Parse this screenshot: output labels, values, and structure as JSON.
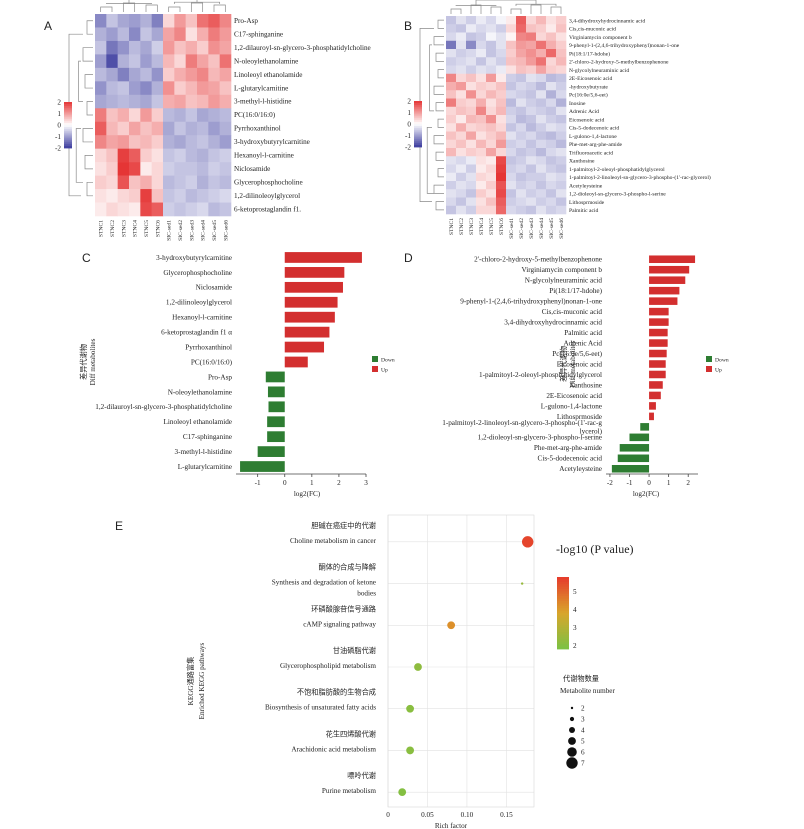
{
  "panels": {
    "a": "A",
    "b": "B",
    "c": "C",
    "d": "D",
    "e": "E"
  },
  "chart_data": [
    {
      "panel": "A",
      "type": "heatmap",
      "columns": [
        "STNC1",
        "STNC2",
        "STNC3",
        "STNC4",
        "STNC5",
        "STNC6",
        "SIC-sed1",
        "SIC-sed2",
        "SIC-sed3",
        "SIC-sed4",
        "SIC-sed5",
        "SIC-sed6"
      ],
      "rows": [
        "Pro-Asp",
        "C17-sphinganine",
        "1,2-dilauroyl-sn-glycero-3-phosphatidylcholine",
        "N-oleoylethanolamine",
        "Linoleoyl ethanolamide",
        "L-glutarylcarnitine",
        "3-methyl-l-histidine",
        "PC(16:0/16:0)",
        "Pyrrhoxanthinol",
        "3-hydroxybutyrylcarnitine",
        "Hexanoyl-l-carnitine",
        "Niclosamide",
        "Glycerophosphocholine",
        "1,2-dilinoleoylglycerol",
        "6-ketoprostaglandin f1."
      ],
      "values": [
        [
          -1.2,
          -0.6,
          -0.9,
          -1.0,
          -0.8,
          -1.3,
          0.4,
          1.0,
          0.6,
          1.4,
          1.6,
          1.2
        ],
        [
          -0.8,
          -1.0,
          -0.7,
          -1.2,
          -0.6,
          -0.9,
          0.9,
          1.2,
          0.3,
          0.8,
          1.3,
          1.0
        ],
        [
          -0.6,
          -1.4,
          -1.1,
          -0.7,
          -0.9,
          -0.5,
          1.0,
          0.6,
          0.8,
          0.5,
          1.1,
          0.9
        ],
        [
          -1.0,
          -1.8,
          -0.8,
          -0.6,
          -1.0,
          -0.7,
          0.7,
          0.4,
          1.3,
          0.9,
          0.6,
          1.4
        ],
        [
          -0.7,
          -0.9,
          -1.3,
          -0.9,
          -0.7,
          -1.1,
          0.5,
          0.8,
          1.0,
          1.2,
          0.7,
          0.9
        ],
        [
          -1.1,
          -0.7,
          -0.6,
          -1.0,
          -1.2,
          -0.8,
          1.1,
          0.5,
          0.7,
          1.0,
          0.9,
          0.6
        ],
        [
          -0.9,
          -0.8,
          -0.7,
          -0.8,
          -0.9,
          -0.6,
          0.8,
          0.9,
          0.6,
          0.7,
          1.0,
          0.8
        ],
        [
          1.3,
          0.6,
          0.8,
          0.4,
          1.0,
          0.5,
          -0.7,
          -0.8,
          -0.6,
          -0.9,
          -0.8,
          -0.7
        ],
        [
          1.6,
          0.7,
          0.5,
          0.9,
          0.6,
          0.8,
          -0.9,
          -0.6,
          -0.8,
          -0.7,
          -1.0,
          -0.8
        ],
        [
          1.2,
          0.9,
          1.0,
          0.6,
          0.7,
          0.5,
          -0.8,
          -0.9,
          -0.7,
          -0.6,
          -0.8,
          -1.0
        ],
        [
          0.4,
          0.6,
          1.9,
          1.6,
          0.5,
          0.3,
          -0.6,
          -0.5,
          -0.7,
          -0.8,
          -0.6,
          -0.5
        ],
        [
          0.3,
          0.5,
          2.0,
          1.8,
          0.2,
          0.4,
          -0.5,
          -0.6,
          -0.6,
          -0.7,
          -0.5,
          -0.6
        ],
        [
          0.5,
          0.4,
          1.7,
          0.6,
          0.8,
          0.4,
          -0.7,
          -0.6,
          -0.5,
          -0.8,
          -0.6,
          -0.7
        ],
        [
          0.3,
          0.2,
          0.4,
          0.5,
          1.9,
          0.6,
          -0.6,
          -0.5,
          -0.7,
          -0.6,
          -0.5,
          -0.4
        ],
        [
          0.2,
          0.4,
          0.3,
          0.2,
          1.8,
          1.6,
          -0.5,
          -0.6,
          -0.5,
          -0.4,
          -0.7,
          -0.6
        ]
      ],
      "scale": {
        "min": -2,
        "max": 2,
        "ticks": [
          "2",
          "1",
          "0",
          "-1",
          "-2"
        ],
        "colors": [
          "#3b3b9e",
          "#ffffff",
          "#e53535"
        ]
      }
    },
    {
      "panel": "B",
      "type": "heatmap",
      "columns": [
        "STNC1",
        "STNC2",
        "STNC3",
        "STNC4",
        "STNC5",
        "STNC6",
        "SIC-sed1",
        "SIC-sed2",
        "SIC-sed3",
        "SIC-sed4",
        "SIC-sed5",
        "SIC-sed6"
      ],
      "rows": [
        "3,4-dihydroxyhydrocinnamic acid",
        "Cis,cis-muconic acid",
        "Virginiamycin component b",
        "9-phenyl-1-(2,4,6-trihydroxyphenyl)nonan-1-one",
        "Pi(18:1/17-hdohe)",
        "2'-chloro-2-hydroxy-5-methylbenzophenone",
        "N-glycolylneuraminic acid",
        "2E-Eicosenoic acid",
        "-hydroxybutyrate",
        "Pc(16:0e/5,6-eet)",
        "Inosine",
        "Adrenic Acid",
        "Eicosenoic acid",
        "Cis-5-dodecenoic acid",
        "L-gulono-1,4-lactone",
        "Phe-met-arg-phe-amide",
        "Trifluoroacetic acid",
        "Xanthosine",
        "1-palmitoyl-2-oleoyl-phosphatidylglycerol",
        "1-palmitoyl-2-linoleoyl-sn-glycero-3-phospho-(1'-rac-glycerol)",
        "Acetyleysteine",
        "1,2-dioleoyl-sn-glycero-3-phospho-l-serine",
        "Lithosprmoside",
        "Palmitic acid"
      ],
      "values": [
        [
          -0.6,
          -0.3,
          -0.5,
          -0.2,
          -0.4,
          -0.1,
          0.2,
          1.6,
          0.4,
          0.7,
          0.3,
          0.5
        ],
        [
          -0.5,
          -0.6,
          -0.2,
          -0.4,
          -0.3,
          -0.5,
          0.4,
          1.5,
          0.6,
          0.5,
          0.2,
          0.6
        ],
        [
          -0.4,
          -0.2,
          -0.6,
          -0.5,
          -0.1,
          -0.3,
          0.1,
          1.2,
          1.3,
          0.4,
          0.6,
          0.3
        ],
        [
          -1.4,
          -0.3,
          -1.2,
          -0.4,
          -0.6,
          -0.3,
          0.6,
          1.0,
          0.9,
          1.4,
          0.8,
          0.5
        ],
        [
          -0.3,
          -0.5,
          -0.4,
          -0.2,
          -0.6,
          -0.4,
          0.5,
          0.9,
          1.1,
          0.8,
          1.5,
          0.6
        ],
        [
          -0.5,
          -0.4,
          -0.3,
          -0.6,
          -0.3,
          -0.5,
          0.6,
          0.7,
          1.0,
          1.4,
          0.4,
          0.7
        ],
        [
          -0.4,
          -0.3,
          -0.5,
          -0.3,
          -0.4,
          -0.2,
          0.3,
          0.6,
          0.5,
          0.9,
          0.5,
          0.4
        ],
        [
          1.2,
          0.4,
          0.6,
          0.3,
          1.0,
          0.2,
          -0.5,
          -0.6,
          -0.3,
          -0.4,
          -0.7,
          -0.6
        ],
        [
          0.8,
          1.0,
          0.3,
          0.5,
          0.4,
          0.6,
          -0.6,
          -0.4,
          -0.5,
          -0.7,
          -0.3,
          -0.5
        ],
        [
          0.6,
          0.3,
          1.1,
          0.4,
          0.7,
          0.5,
          -0.4,
          -0.5,
          -0.6,
          -0.3,
          -0.8,
          -0.4
        ],
        [
          1.3,
          0.5,
          0.4,
          0.8,
          0.3,
          0.6,
          -0.7,
          -0.3,
          -0.5,
          -0.6,
          -0.4,
          -0.8
        ],
        [
          0.4,
          0.6,
          0.5,
          1.2,
          0.4,
          0.7,
          -0.5,
          -0.6,
          -0.4,
          -0.5,
          -0.6,
          -0.3
        ],
        [
          0.5,
          0.2,
          0.7,
          0.6,
          1.1,
          0.3,
          -0.4,
          -0.7,
          -0.6,
          -0.3,
          -0.5,
          -0.6
        ],
        [
          0.3,
          0.8,
          0.4,
          0.5,
          0.6,
          0.4,
          -0.6,
          -0.4,
          -0.7,
          -0.5,
          -0.3,
          -0.4
        ],
        [
          0.6,
          0.4,
          0.9,
          0.3,
          0.5,
          0.7,
          -0.3,
          -0.5,
          -0.4,
          -0.6,
          -0.7,
          -0.5
        ],
        [
          0.4,
          0.6,
          0.3,
          0.7,
          0.4,
          1.0,
          -0.5,
          -0.4,
          -0.6,
          -0.4,
          -0.5,
          -0.7
        ],
        [
          0.7,
          0.3,
          0.5,
          0.4,
          0.9,
          0.4,
          -0.4,
          -0.6,
          -0.5,
          -0.7,
          -0.4,
          -0.3
        ],
        [
          -0.3,
          -0.4,
          -0.2,
          0.3,
          0.2,
          1.8,
          -0.6,
          -0.5,
          -0.3,
          -0.4,
          -0.6,
          -0.5
        ],
        [
          -0.4,
          -0.2,
          -0.5,
          0.2,
          0.4,
          1.9,
          -0.5,
          -0.4,
          -0.6,
          -0.3,
          -0.5,
          -0.6
        ],
        [
          -0.2,
          -0.5,
          -0.3,
          0.4,
          0.3,
          2.0,
          -0.4,
          -0.6,
          -0.5,
          -0.5,
          -0.3,
          -0.4
        ],
        [
          -0.5,
          -0.3,
          -0.4,
          0.2,
          0.5,
          1.7,
          -0.3,
          -0.5,
          -0.4,
          -0.6,
          -0.4,
          -0.5
        ],
        [
          -0.3,
          -0.4,
          -0.6,
          0.5,
          0.3,
          1.8,
          -0.6,
          -0.3,
          -0.5,
          -0.4,
          -0.6,
          -0.3
        ],
        [
          -0.4,
          -0.6,
          -0.3,
          0.3,
          0.6,
          1.6,
          -0.5,
          -0.4,
          -0.3,
          -0.5,
          -0.4,
          -0.6
        ],
        [
          -0.6,
          -0.3,
          -0.5,
          0.4,
          0.4,
          1.5,
          -0.4,
          -0.5,
          -0.6,
          -0.3,
          -0.5,
          -0.4
        ]
      ],
      "scale": {
        "min": -2,
        "max": 2,
        "ticks": [
          "2",
          "1",
          "0",
          "-1",
          "-2"
        ],
        "colors": [
          "#3b3b9e",
          "#ffffff",
          "#e53535"
        ]
      }
    },
    {
      "panel": "C",
      "type": "bar",
      "orientation": "horizontal",
      "categories": [
        "3-hydroxybutyrylcarnitine",
        "Glycerophosphocholine",
        "Niclosamide",
        "1,2-dilinoleoylglycerol",
        "Hexanoyl-l-carnitine",
        "6-ketoprostaglandin f1 α",
        "Pyrrhoxanthinol",
        "PC(16:0/16:0)",
        "Pro-Asp",
        "N-oleoylethanolamine",
        "1,2-dilauroyl-sn-glycero-3-phosphatidylcholine",
        "Linoleoyl ethanolamide",
        "C17-sphinganine",
        "3-methyl-l-histidine",
        "L-glutarylcarnitine"
      ],
      "values": [
        2.85,
        2.2,
        2.15,
        1.95,
        1.85,
        1.65,
        1.45,
        0.85,
        -0.7,
        -0.62,
        -0.6,
        -0.65,
        -0.65,
        -1.0,
        -1.65
      ],
      "xlabel": "log2(FC)",
      "ylabel": "差异代谢物 Diff metabolites",
      "xlim": [
        -1.8,
        3.0
      ],
      "xticks": [
        -1,
        0,
        1,
        2,
        3
      ],
      "legend": {
        "title": "",
        "entries": [
          {
            "name": "Down",
            "color": "#2e7d32"
          },
          {
            "name": "Up",
            "color": "#d32f2f"
          }
        ]
      }
    },
    {
      "panel": "D",
      "type": "bar",
      "orientation": "horizontal",
      "categories": [
        "2'-chloro-2-hydroxy-5-methylbenzophenone",
        "Virginiamycin component b",
        "N-glycolylneuraminic acid",
        "Pi(18:1/17-hdohe)",
        "9-phenyl-1-(2,4,6-trihydroxyphenyl)nonan-1-one",
        "Cis,cis-muconic acid",
        "3,4-dihydroxyhydrocinnamic acid",
        "Palmitic acid",
        "Adrenic Acid",
        "Pc(16:0e/5,6-eet)",
        "Eicosenoic acid",
        "1-palmitoyl-2-oleoyl-phosphatidylglycerol",
        "Xanthosine",
        "2E-Eicosenoic acid",
        "L-gulono-1,4-lactone",
        "Lithosprmoside",
        "1-palmitoyl-2-linoleoyl-sn-glycero-3-phospho-(1'-rac-g lycerol)",
        "1,2-dioleoyl-sn-glycero-3-phospho-l-serine",
        "Phe-met-arg-phe-amide",
        "Cis-5-dodecenoic acid",
        "Acetyleysteine"
      ],
      "values": [
        2.35,
        2.05,
        1.85,
        1.55,
        1.45,
        1.0,
        1.0,
        0.95,
        0.95,
        0.9,
        0.85,
        0.85,
        0.7,
        0.6,
        0.35,
        0.25,
        -0.45,
        -1.0,
        -1.5,
        -1.6,
        -1.9
      ],
      "xlabel": "log2(FC)",
      "ylabel": "差异代谢物 Diff metabolites",
      "xlim": [
        -2.2,
        2.5
      ],
      "xticks": [
        -2,
        -1,
        0,
        1,
        2
      ],
      "legend": {
        "title": "",
        "entries": [
          {
            "name": "Down",
            "color": "#2e7d32"
          },
          {
            "name": "Up",
            "color": "#d32f2f"
          }
        ]
      }
    },
    {
      "panel": "E",
      "type": "scatter",
      "pathways": [
        {
          "cn": "胆碱在癌症中的代谢",
          "en": [
            "Choline metabolism in cancer"
          ],
          "rich_factor": 0.177,
          "neg_log10_p": 5.6,
          "count": 7
        },
        {
          "cn": "酮体的合成与降解",
          "en": [
            "Synthesis and degradation of ketone",
            "bodies"
          ],
          "rich_factor": 0.17,
          "neg_log10_p": 2.4,
          "count": 2
        },
        {
          "cn": "环磷酸腺苷信号通路",
          "en": [
            "cAMP signaling pathway"
          ],
          "rich_factor": 0.08,
          "neg_log10_p": 4.2,
          "count": 5
        },
        {
          "cn": "甘油磷脂代谢",
          "en": [
            "Glycerophospholipid metabolism"
          ],
          "rich_factor": 0.038,
          "neg_log10_p": 2.2,
          "count": 5
        },
        {
          "cn": "不饱和脂肪酸的生物合成",
          "en": [
            "Biosynthesis of unsaturated fatty acids"
          ],
          "rich_factor": 0.028,
          "neg_log10_p": 2.1,
          "count": 5
        },
        {
          "cn": "花生四烯酸代谢",
          "en": [
            "Arachidonic acid metabolism"
          ],
          "rich_factor": 0.028,
          "neg_log10_p": 2.1,
          "count": 5
        },
        {
          "cn": "嘌呤代谢",
          "en": [
            "Purine metabolism"
          ],
          "rich_factor": 0.018,
          "neg_log10_p": 2.0,
          "count": 5
        }
      ],
      "xlabel": "Rich factor",
      "ylabel": "KEGG通路富集 Enriched KEGG pathways",
      "xlim": [
        0,
        0.185
      ],
      "xticks": [
        0,
        0.05,
        0.1,
        0.15
      ],
      "xtick_labels": [
        "0",
        "0.05",
        "0.10",
        "0.15"
      ],
      "color_legend": {
        "title": "-log10 (P value)",
        "ticks": [
          5,
          4,
          3,
          2
        ],
        "range": [
          1.8,
          5.8
        ],
        "colors": [
          "#7bc244",
          "#d9a52b",
          "#e63a2c"
        ]
      },
      "size_legend": {
        "title_cn": "代谢物数量",
        "title_en": "Metabolite number",
        "values": [
          2,
          3,
          4,
          5,
          6,
          7
        ]
      }
    }
  ]
}
